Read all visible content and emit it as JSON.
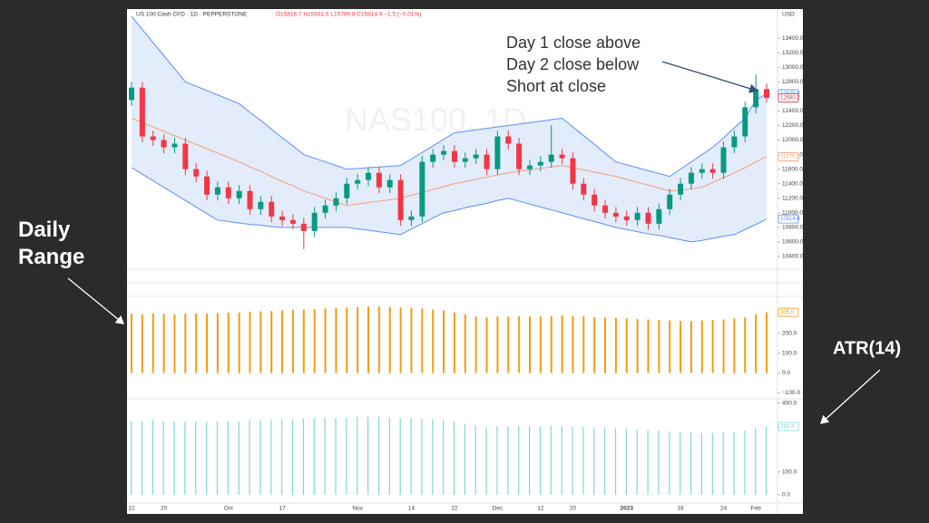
{
  "chart_data": [
    {
      "type": "candlestick",
      "title": "US 100 Cash CFD · 1D · PEPPERSTONE",
      "subtitle": "O15816.7 H15931.5 L15799.8 C15814.9 −1.5 (−0.01%)",
      "watermark": "NAS100, 1D",
      "currency": "USD",
      "annotations": [
        "Day 1 close above",
        "Day 2 close below",
        "Short at close"
      ],
      "categories": [
        "12",
        null,
        null,
        "20",
        null,
        null,
        null,
        null,
        null,
        "Oct",
        null,
        null,
        null,
        null,
        "17",
        null,
        null,
        null,
        null,
        null,
        null,
        "Nov",
        null,
        null,
        null,
        null,
        "14",
        null,
        null,
        null,
        "22",
        null,
        null,
        null,
        "Dec",
        null,
        null,
        null,
        "12",
        null,
        null,
        "20",
        null,
        null,
        null,
        null,
        "2023",
        null,
        null,
        null,
        null,
        "16",
        null,
        null,
        null,
        "24",
        null,
        null,
        "Feb",
        null
      ],
      "open": [
        12550,
        12720,
        12050,
        12000,
        11900,
        11950,
        11600,
        11500,
        11250,
        11350,
        11200,
        11300,
        11050,
        11150,
        10950,
        10900,
        10850,
        10750,
        11000,
        11100,
        11200,
        11400,
        11450,
        11550,
        11350,
        11450,
        10900,
        10950,
        11700,
        11800,
        11850,
        11700,
        11750,
        11800,
        11600,
        12050,
        11950,
        11600,
        11650,
        11700,
        11800,
        11750,
        11400,
        11250,
        11100,
        11000,
        10950,
        10900,
        11000,
        10850,
        11050,
        11250,
        11400,
        11550,
        11600,
        11550,
        11900,
        12050,
        12450,
        12700
      ],
      "high": [
        12800,
        12800,
        12130,
        12080,
        12030,
        12030,
        11680,
        11580,
        11430,
        11430,
        11380,
        11380,
        11230,
        11230,
        11030,
        10980,
        10930,
        11080,
        11180,
        11280,
        11480,
        11530,
        11630,
        11630,
        11530,
        11530,
        11030,
        11780,
        11880,
        11930,
        11930,
        11830,
        11880,
        11880,
        12130,
        12130,
        12030,
        11730,
        11780,
        12200,
        11880,
        11830,
        11480,
        11330,
        11180,
        11080,
        11030,
        11080,
        11080,
        11130,
        11330,
        11480,
        11630,
        11680,
        11680,
        11980,
        12130,
        12530,
        12900,
        12780
      ],
      "low": [
        12470,
        11970,
        11920,
        11820,
        11820,
        11520,
        11420,
        11170,
        11170,
        11120,
        11120,
        10970,
        10970,
        10870,
        10820,
        10770,
        10500,
        10670,
        10920,
        11020,
        11120,
        11320,
        11370,
        11270,
        11270,
        10820,
        10820,
        10870,
        11620,
        11720,
        11620,
        11620,
        11670,
        11520,
        11520,
        11870,
        11520,
        11520,
        11570,
        11620,
        11670,
        11320,
        11170,
        11020,
        10920,
        10870,
        10820,
        10820,
        10770,
        10770,
        10970,
        11170,
        11320,
        11470,
        11470,
        11470,
        11820,
        11970,
        12370,
        12510
      ],
      "close": [
        12720,
        12050,
        12000,
        11900,
        11950,
        11600,
        11500,
        11250,
        11350,
        11200,
        11300,
        11050,
        11150,
        10950,
        10900,
        10850,
        10750,
        11000,
        11100,
        11200,
        11400,
        11450,
        11550,
        11350,
        11450,
        10900,
        10950,
        11700,
        11800,
        11850,
        11700,
        11750,
        11800,
        11600,
        12050,
        11950,
        11600,
        11650,
        11700,
        11800,
        11750,
        11400,
        11250,
        11100,
        11000,
        10950,
        10900,
        11000,
        10850,
        11050,
        11250,
        11400,
        11550,
        11600,
        11550,
        11900,
        12050,
        12450,
        12700,
        12580.2
      ],
      "up_color": "#089981",
      "down_color": "#f23645",
      "bands": [
        {
          "color": "#5b8ff9",
          "values": [
            13700,
            13520,
            13340,
            13160,
            12980,
            12800,
            12740,
            12680,
            12620,
            12560,
            12500,
            12380,
            12270,
            12150,
            12030,
            11920,
            11800,
            11750,
            11700,
            11650,
            11600,
            11610,
            11620,
            11630,
            11640,
            11650,
            11740,
            11830,
            11920,
            12010,
            12100,
            12120,
            12140,
            12160,
            12180,
            12200,
            12220,
            12240,
            12260,
            12280,
            12300,
            12180,
            12060,
            11940,
            11820,
            11700,
            11660,
            11620,
            11580,
            11540,
            11500,
            11600,
            11700,
            11800,
            11900,
            12030,
            12170,
            12300,
            12550,
            12635.8
          ]
        },
        {
          "color": "#f7a072",
          "values": [
            12300,
            12240,
            12180,
            12120,
            12060,
            12000,
            11940,
            11880,
            11820,
            11760,
            11700,
            11630,
            11570,
            11500,
            11430,
            11370,
            11300,
            11250,
            11200,
            11150,
            11100,
            11120,
            11140,
            11160,
            11180,
            11200,
            11240,
            11280,
            11320,
            11360,
            11400,
            11430,
            11460,
            11490,
            11520,
            11550,
            11570,
            11590,
            11610,
            11630,
            11650,
            11620,
            11590,
            11560,
            11530,
            11500,
            11460,
            11420,
            11380,
            11340,
            11300,
            11310,
            11330,
            11350,
            11420,
            11480,
            11550,
            11620,
            11700,
            11770.2
          ]
        },
        {
          "color": "#5b8ff9",
          "values": [
            11620,
            11530,
            11440,
            11350,
            11260,
            11170,
            11080,
            10990,
            10900,
            10880,
            10860,
            10840,
            10830,
            10810,
            10800,
            10800,
            10800,
            10800,
            10800,
            10800,
            10800,
            10780,
            10760,
            10740,
            10720,
            10700,
            10780,
            10850,
            10930,
            11000,
            11030,
            11070,
            11100,
            11130,
            11170,
            11200,
            11160,
            11120,
            11080,
            11040,
            11000,
            10960,
            10920,
            10880,
            10840,
            10800,
            10770,
            10740,
            10710,
            10690,
            10660,
            10630,
            10600,
            10620,
            10650,
            10680,
            10700,
            10770,
            10840,
            10914.6
          ]
        }
      ],
      "band_fill": "#e3ecfb",
      "ylim": [
        10225,
        13800
      ],
      "yticks": [
        {
          "value": 10400,
          "label": "10400.0"
        },
        {
          "value": 10600,
          "label": "10600.0"
        },
        {
          "value": 10800,
          "label": "10800.0"
        },
        {
          "value": 11000,
          "label": "11000.0"
        },
        {
          "value": 11200,
          "label": "11200.0"
        },
        {
          "value": 11400,
          "label": "11400.0"
        },
        {
          "value": 11600,
          "label": "11600.0"
        },
        {
          "value": 11800,
          "label": "11800.0"
        },
        {
          "value": 12000,
          "label": "12000.0"
        },
        {
          "value": 12200,
          "label": "12200.0"
        },
        {
          "value": 12400,
          "label": "12400.0"
        },
        {
          "value": 12800,
          "label": "12800.0"
        },
        {
          "value": 13000,
          "label": "13000.0"
        },
        {
          "value": 13200,
          "label": "13200.0"
        },
        {
          "value": 13400,
          "label": "13400.0"
        }
      ]
    },
    {
      "type": "bar",
      "annotation": "Daily Range",
      "color": "#f39c12",
      "values": [
        300,
        295,
        300,
        298,
        295,
        300,
        300,
        300,
        302,
        305,
        305,
        308,
        310,
        312,
        315,
        318,
        320,
        322,
        325,
        328,
        330,
        332,
        335,
        335,
        332,
        330,
        328,
        325,
        320,
        315,
        305,
        295,
        285,
        280,
        285,
        285,
        285,
        285,
        285,
        288,
        290,
        288,
        285,
        282,
        280,
        278,
        275,
        272,
        270,
        268,
        265,
        262,
        262,
        265,
        268,
        270,
        275,
        280,
        295,
        305.8
      ],
      "ylim": [
        -130,
        386
      ],
      "yticks": [
        {
          "value": -100,
          "label": "−100.0"
        },
        {
          "value": 0,
          "label": "0.0"
        },
        {
          "value": 100,
          "label": "100.0"
        },
        {
          "value": 200,
          "label": "200.0"
        }
      ]
    },
    {
      "type": "bar",
      "annotation": "ATR(14)",
      "color": "#7fd6dd",
      "values": [
        320,
        322,
        325,
        322,
        320,
        318,
        318,
        318,
        320,
        320,
        322,
        325,
        325,
        328,
        330,
        330,
        332,
        335,
        335,
        335,
        338,
        340,
        340,
        340,
        338,
        335,
        335,
        332,
        330,
        325,
        318,
        310,
        300,
        295,
        300,
        300,
        300,
        300,
        300,
        302,
        300,
        298,
        296,
        295,
        293,
        290,
        288,
        285,
        282,
        280,
        278,
        275,
        272,
        270,
        270,
        272,
        275,
        280,
        290,
        298.3
      ],
      "ylim": [
        -36,
        419
      ],
      "yticks": [
        {
          "value": 0,
          "label": "0.0"
        },
        {
          "value": 100,
          "label": "100.0"
        },
        {
          "value": 400,
          "label": "400.0"
        }
      ]
    }
  ]
}
